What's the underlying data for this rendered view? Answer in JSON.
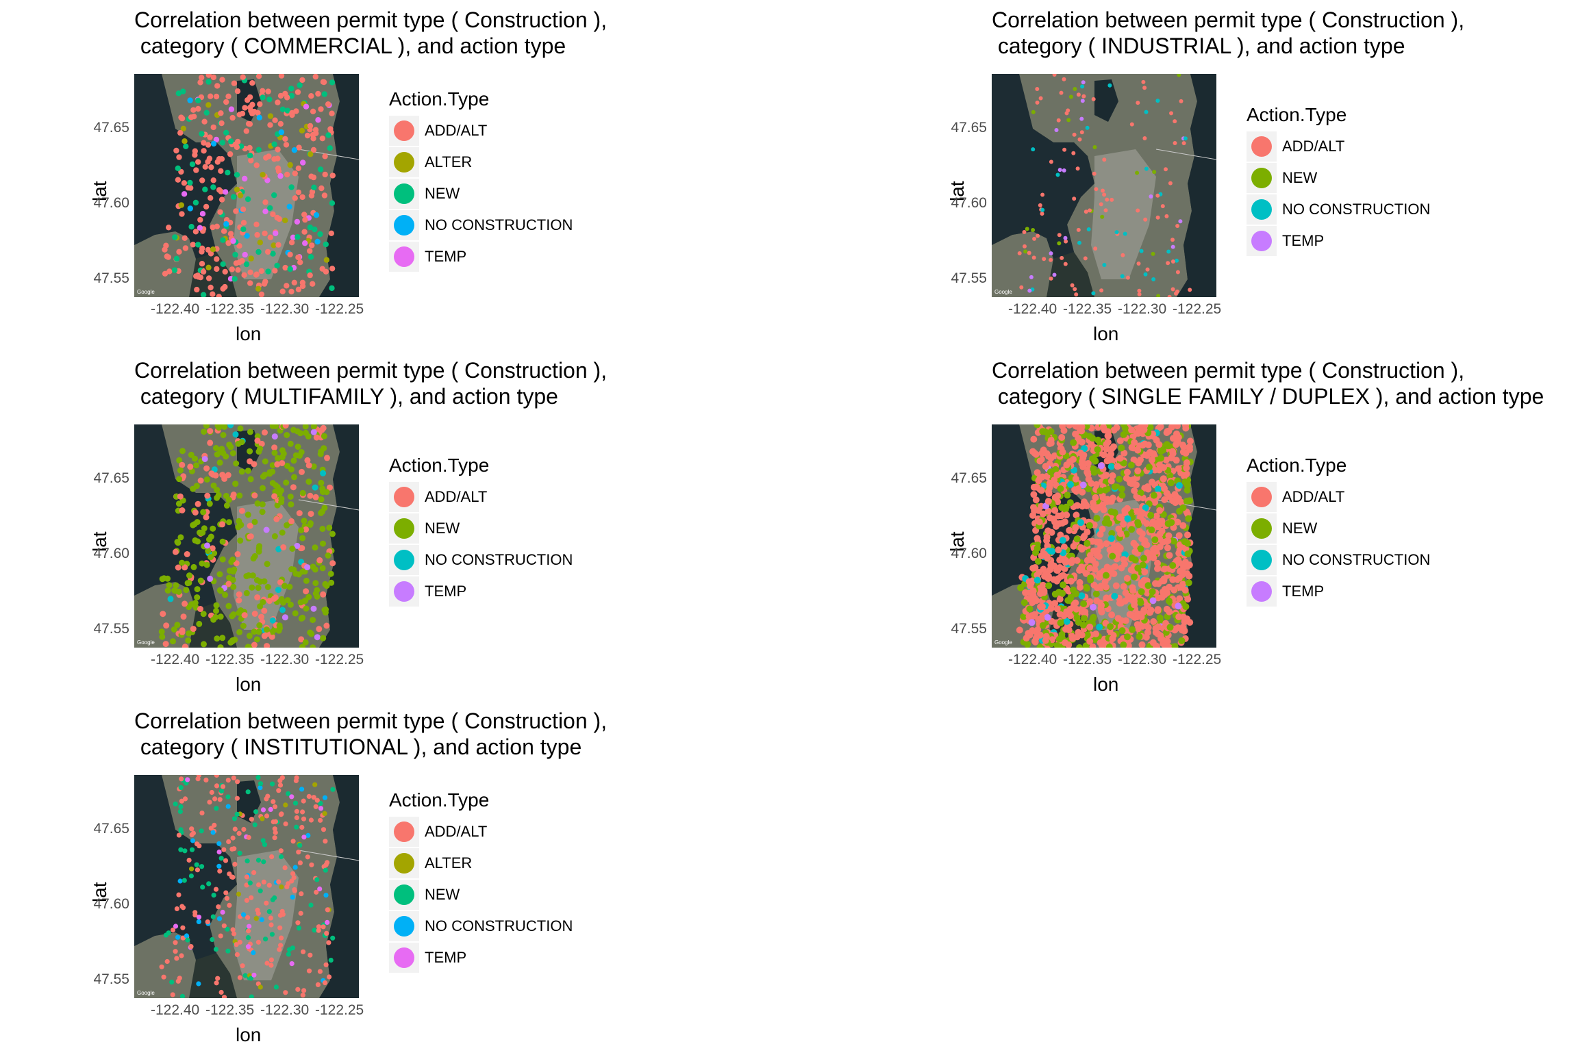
{
  "colors": {
    "ADD/ALT": "#F8766D",
    "ALTER": "#A3A500",
    "NEW_5": "#00BF7D",
    "NO CONSTRUCTION_5": "#00B0F6",
    "TEMP_5": "#E76BF3",
    "NEW_4": "#7CAE00",
    "NO CONSTRUCTION_4": "#00BFC4",
    "TEMP_4": "#C77CFF"
  },
  "chart_data": [
    {
      "type": "scatter",
      "title": "Correlation between permit type ( Construction ),\n category ( COMMERCIAL ), and action type",
      "xlabel": "lon",
      "ylabel": "lat",
      "xticks": [
        "-122.40",
        "-122.35",
        "-122.30",
        "-122.25"
      ],
      "yticks": [
        "47.65",
        "47.60",
        "47.55"
      ],
      "legend_title": "Action.Type",
      "legend": [
        {
          "label": "ADD/ALT",
          "color": "#F8766D"
        },
        {
          "label": "ALTER",
          "color": "#A3A500"
        },
        {
          "label": "NEW",
          "color": "#00BF7D"
        },
        {
          "label": "NO CONSTRUCTION",
          "color": "#00B0F6"
        },
        {
          "label": "TEMP",
          "color": "#E76BF3"
        }
      ],
      "basemap_credit": "Google",
      "density": {
        "ADD/ALT": 0.62,
        "NEW": 0.22,
        "ALTER": 0.04,
        "NO CONSTRUCTION": 0.06,
        "TEMP": 0.06
      }
    },
    {
      "type": "scatter",
      "title": "Correlation between permit type ( Construction ),\n category ( INDUSTRIAL ), and action type",
      "xlabel": "lon",
      "ylabel": "lat",
      "xticks": [
        "-122.40",
        "-122.35",
        "-122.30",
        "-122.25"
      ],
      "yticks": [
        "47.65",
        "47.60",
        "47.55"
      ],
      "legend_title": "Action.Type",
      "legend": [
        {
          "label": "ADD/ALT",
          "color": "#F8766D"
        },
        {
          "label": "NEW",
          "color": "#7CAE00"
        },
        {
          "label": "NO CONSTRUCTION",
          "color": "#00BFC4"
        },
        {
          "label": "TEMP",
          "color": "#C77CFF"
        }
      ],
      "basemap_credit": "Google",
      "density": {
        "ADD/ALT": 0.55,
        "NEW": 0.2,
        "NO CONSTRUCTION": 0.15,
        "TEMP": 0.1
      }
    },
    {
      "type": "scatter",
      "title": "Correlation between permit type ( Construction ),\n category ( MULTIFAMILY ), and action type",
      "xlabel": "lon",
      "ylabel": "lat",
      "xticks": [
        "-122.40",
        "-122.35",
        "-122.30",
        "-122.25"
      ],
      "yticks": [
        "47.65",
        "47.60",
        "47.55"
      ],
      "legend_title": "Action.Type",
      "legend": [
        {
          "label": "ADD/ALT",
          "color": "#F8766D"
        },
        {
          "label": "NEW",
          "color": "#7CAE00"
        },
        {
          "label": "NO CONSTRUCTION",
          "color": "#00BFC4"
        },
        {
          "label": "TEMP",
          "color": "#C77CFF"
        }
      ],
      "basemap_credit": "Google",
      "density": {
        "ADD/ALT": 0.25,
        "NEW": 0.7,
        "NO CONSTRUCTION": 0.03,
        "TEMP": 0.02
      }
    },
    {
      "type": "scatter",
      "title": "Correlation between permit type ( Construction ),\n category ( SINGLE FAMILY / DUPLEX ), and action type",
      "xlabel": "lon",
      "ylabel": "lat",
      "xticks": [
        "-122.40",
        "-122.35",
        "-122.30",
        "-122.25"
      ],
      "yticks": [
        "47.65",
        "47.60",
        "47.55"
      ],
      "legend_title": "Action.Type",
      "legend": [
        {
          "label": "ADD/ALT",
          "color": "#F8766D"
        },
        {
          "label": "NEW",
          "color": "#7CAE00"
        },
        {
          "label": "NO CONSTRUCTION",
          "color": "#00BFC4"
        },
        {
          "label": "TEMP",
          "color": "#C77CFF"
        }
      ],
      "basemap_credit": "Google",
      "density": {
        "ADD/ALT": 0.68,
        "NEW": 0.28,
        "NO CONSTRUCTION": 0.03,
        "TEMP": 0.01
      }
    },
    {
      "type": "scatter",
      "title": "Correlation between permit type ( Construction ),\n category ( INSTITUTIONAL ), and action type",
      "xlabel": "lon",
      "ylabel": "lat",
      "xticks": [
        "-122.40",
        "-122.35",
        "-122.30",
        "-122.25"
      ],
      "yticks": [
        "47.65",
        "47.60",
        "47.55"
      ],
      "legend_title": "Action.Type",
      "legend": [
        {
          "label": "ADD/ALT",
          "color": "#F8766D"
        },
        {
          "label": "ALTER",
          "color": "#A3A500"
        },
        {
          "label": "NEW",
          "color": "#00BF7D"
        },
        {
          "label": "NO CONSTRUCTION",
          "color": "#00B0F6"
        },
        {
          "label": "TEMP",
          "color": "#E76BF3"
        }
      ],
      "basemap_credit": "Google",
      "density": {
        "ADD/ALT": 0.6,
        "NEW": 0.25,
        "ALTER": 0.03,
        "NO CONSTRUCTION": 0.06,
        "TEMP": 0.06
      }
    }
  ]
}
